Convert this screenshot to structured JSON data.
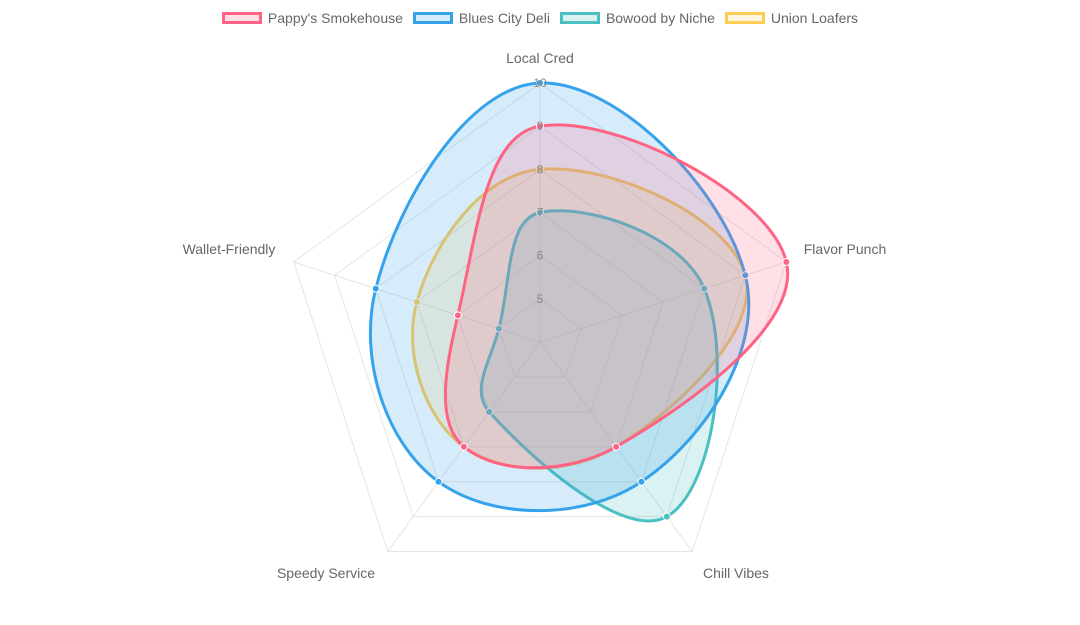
{
  "chart_data": {
    "type": "radar",
    "labels": [
      "Local Cred",
      "Flavor Punch",
      "Chill Vibes",
      "Speedy Service",
      "Wallet-Friendly"
    ],
    "scale": {
      "min": 4,
      "max": 10,
      "ticks": [
        "5",
        "6",
        "7",
        "8",
        "9",
        "10"
      ]
    },
    "legend_position": "top",
    "grid": true,
    "series": [
      {
        "name": "Pappy's Smokehouse",
        "color": "#ff6384",
        "values": [
          9,
          10,
          7,
          7,
          6
        ]
      },
      {
        "name": "Blues City Deli",
        "color": "#36a2eb",
        "values": [
          10,
          9,
          8,
          8,
          8
        ]
      },
      {
        "name": "Bowood by Niche",
        "color": "#4bc0c0",
        "values": [
          7,
          8,
          9,
          6,
          5
        ]
      },
      {
        "name": "Union Loafers",
        "color": "#ffcd56",
        "values": [
          8,
          9,
          7,
          7,
          7
        ]
      }
    ]
  }
}
